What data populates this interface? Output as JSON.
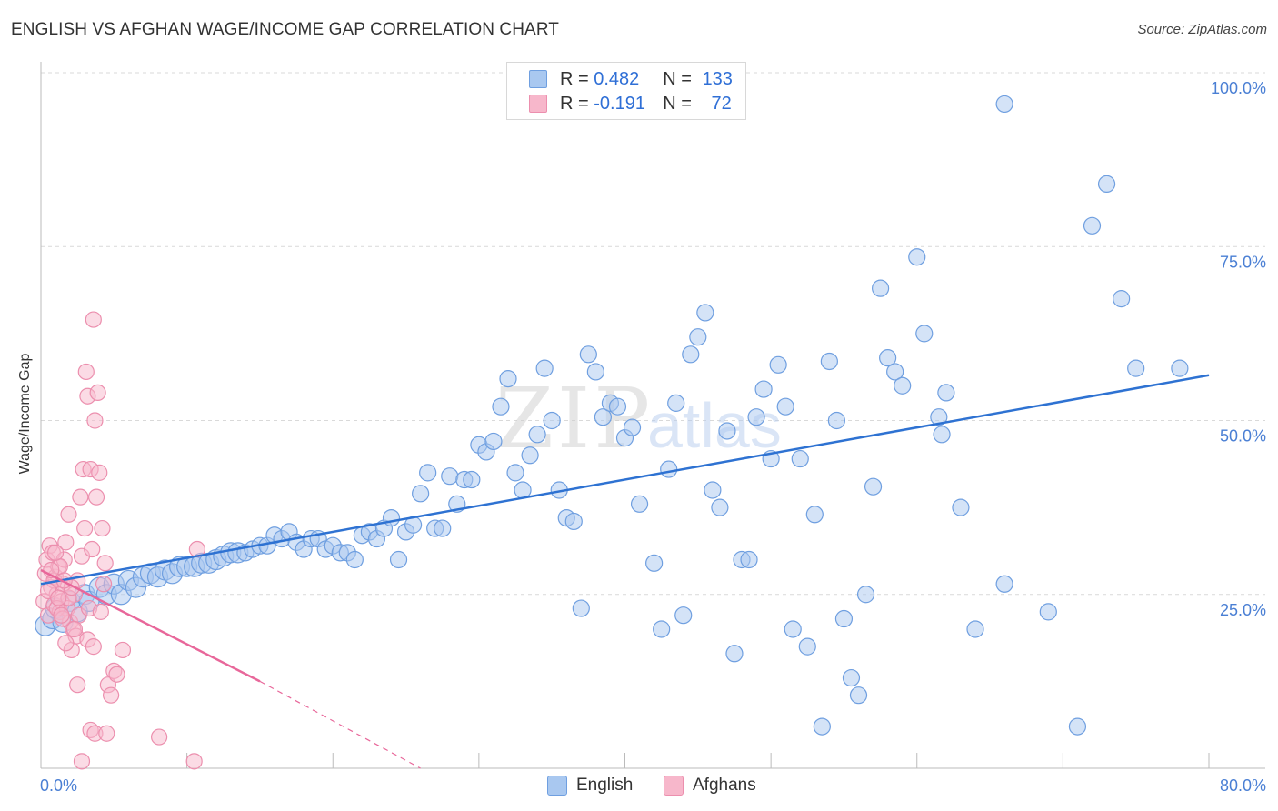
{
  "header": {
    "title": "ENGLISH VS AFGHAN WAGE/INCOME GAP CORRELATION CHART",
    "source": "Source: ZipAtlas.com"
  },
  "legend": {
    "english": {
      "r_label": "R = ",
      "r_value": "0.482",
      "n_label": "N = ",
      "n_value": "133"
    },
    "afghans": {
      "r_label": "R = ",
      "r_value": "-0.191",
      "n_label": "N = ",
      "n_value": "72"
    }
  },
  "colors": {
    "english_fill": "#a9c8f0",
    "english_stroke": "#6f9fe0",
    "english_line": "#2e72d2",
    "afghans_fill": "#f7b7cb",
    "afghans_stroke": "#ec8fae",
    "afghans_line": "#e8679a",
    "tick_text": "#4a7fd4",
    "grid": "#d9d9d9"
  },
  "watermark": {
    "zip": "ZIP",
    "atlas": "atlas"
  },
  "chart_data": {
    "type": "scatter",
    "title": "ENGLISH VS AFGHAN WAGE/INCOME GAP CORRELATION CHART",
    "xlabel": "",
    "ylabel": "Wage/Income Gap",
    "xlim": [
      0,
      80
    ],
    "ylim": [
      0,
      100
    ],
    "x_tick_labels": [
      "0.0%",
      "80.0%"
    ],
    "y_tick_labels": [
      "25.0%",
      "50.0%",
      "75.0%",
      "100.0%"
    ],
    "y_ticks": [
      25,
      50,
      75,
      100
    ],
    "grid": true,
    "legend_position": "top-center",
    "series": [
      {
        "name": "English",
        "R": 0.482,
        "N": 133,
        "trend": {
          "x0": 0,
          "y0": 26.5,
          "x1": 80,
          "y1": 56.5
        },
        "points": [
          [
            0.3,
            20.5
          ],
          [
            0.8,
            21.5
          ],
          [
            1.0,
            23
          ],
          [
            1.5,
            21
          ],
          [
            2.0,
            24
          ],
          [
            2.5,
            22.5
          ],
          [
            3.0,
            25
          ],
          [
            3.3,
            24
          ],
          [
            4.0,
            26
          ],
          [
            4.5,
            25
          ],
          [
            5.0,
            26.5
          ],
          [
            5.5,
            25
          ],
          [
            6.0,
            27
          ],
          [
            6.5,
            26
          ],
          [
            7.0,
            27.5
          ],
          [
            7.5,
            28
          ],
          [
            8.0,
            27.5
          ],
          [
            8.5,
            28.5
          ],
          [
            9.0,
            28
          ],
          [
            9.5,
            29
          ],
          [
            10,
            29
          ],
          [
            10.5,
            29
          ],
          [
            11,
            29.5
          ],
          [
            11.5,
            29.5
          ],
          [
            12,
            30
          ],
          [
            12.5,
            30.5
          ],
          [
            13,
            31
          ],
          [
            13.5,
            31
          ],
          [
            14,
            31
          ],
          [
            14.5,
            31.5
          ],
          [
            15,
            32
          ],
          [
            15.5,
            32
          ],
          [
            16,
            33.5
          ],
          [
            16.5,
            33
          ],
          [
            17,
            34
          ],
          [
            17.5,
            32.5
          ],
          [
            18,
            31.5
          ],
          [
            18.5,
            33
          ],
          [
            19,
            33
          ],
          [
            19.5,
            31.5
          ],
          [
            20,
            32
          ],
          [
            20.5,
            31
          ],
          [
            21,
            31
          ],
          [
            21.5,
            30
          ],
          [
            22,
            33.5
          ],
          [
            22.5,
            34
          ],
          [
            23,
            33
          ],
          [
            23.5,
            34.5
          ],
          [
            24,
            36
          ],
          [
            24.5,
            30
          ],
          [
            25,
            34
          ],
          [
            25.5,
            35
          ],
          [
            26,
            39.5
          ],
          [
            26.5,
            42.5
          ],
          [
            27,
            34.5
          ],
          [
            27.5,
            34.5
          ],
          [
            28,
            42
          ],
          [
            28.5,
            38
          ],
          [
            29,
            41.5
          ],
          [
            29.5,
            41.5
          ],
          [
            30,
            46.5
          ],
          [
            30.5,
            45.5
          ],
          [
            31,
            47
          ],
          [
            31.5,
            52
          ],
          [
            32,
            56
          ],
          [
            32.5,
            42.5
          ],
          [
            33,
            40
          ],
          [
            33.5,
            45
          ],
          [
            34,
            48
          ],
          [
            34.5,
            57.5
          ],
          [
            35,
            50
          ],
          [
            35.5,
            40
          ],
          [
            36,
            36
          ],
          [
            36.5,
            35.5
          ],
          [
            37,
            23
          ],
          [
            37.5,
            59.5
          ],
          [
            38,
            57
          ],
          [
            38.5,
            50.5
          ],
          [
            39,
            52.5
          ],
          [
            39.5,
            52
          ],
          [
            40,
            47.5
          ],
          [
            40.5,
            49
          ],
          [
            41,
            38
          ],
          [
            42,
            29.5
          ],
          [
            42.5,
            20
          ],
          [
            43,
            43
          ],
          [
            43.5,
            52.5
          ],
          [
            44,
            22
          ],
          [
            44.5,
            59.5
          ],
          [
            45,
            62
          ],
          [
            45.5,
            65.5
          ],
          [
            46,
            40
          ],
          [
            46.5,
            37.5
          ],
          [
            47,
            48.5
          ],
          [
            47.5,
            16.5
          ],
          [
            48,
            30
          ],
          [
            48.5,
            30
          ],
          [
            49,
            50.5
          ],
          [
            49.5,
            54.5
          ],
          [
            50,
            44.5
          ],
          [
            50.5,
            58
          ],
          [
            51,
            52
          ],
          [
            51.5,
            20
          ],
          [
            52,
            44.5
          ],
          [
            52.5,
            17.5
          ],
          [
            53,
            36.5
          ],
          [
            53.5,
            6
          ],
          [
            54,
            58.5
          ],
          [
            54.5,
            50
          ],
          [
            55,
            21.5
          ],
          [
            55.5,
            13
          ],
          [
            56,
            10.5
          ],
          [
            56.5,
            25
          ],
          [
            57,
            40.5
          ],
          [
            57.5,
            69
          ],
          [
            58,
            59
          ],
          [
            58.5,
            57
          ],
          [
            59,
            55
          ],
          [
            60,
            73.5
          ],
          [
            60.5,
            62.5
          ],
          [
            61.5,
            50.5
          ],
          [
            61.7,
            48
          ],
          [
            62,
            54
          ],
          [
            63,
            37.5
          ],
          [
            64,
            20
          ],
          [
            66,
            26.5
          ],
          [
            69,
            22.5
          ],
          [
            71,
            6
          ],
          [
            72,
            78
          ],
          [
            73,
            84
          ],
          [
            74,
            67.5
          ],
          [
            75,
            57.5
          ],
          [
            66,
            95.5
          ],
          [
            78,
            57.5
          ]
        ]
      },
      {
        "name": "Afghans",
        "R": -0.191,
        "N": 72,
        "trend": {
          "x0": 0,
          "y0": 28.5,
          "x1": 15,
          "y1": 12.5,
          "dashed_to_x": 26,
          "dashed_to_y": 0
        },
        "points": [
          [
            0.2,
            24
          ],
          [
            0.3,
            28
          ],
          [
            0.4,
            30
          ],
          [
            0.5,
            22
          ],
          [
            0.6,
            32
          ],
          [
            0.7,
            26
          ],
          [
            0.8,
            31
          ],
          [
            0.9,
            23.5
          ],
          [
            1.0,
            27.5
          ],
          [
            1.1,
            25
          ],
          [
            1.2,
            29
          ],
          [
            1.3,
            22.5
          ],
          [
            1.4,
            24
          ],
          [
            1.5,
            26.5
          ],
          [
            1.6,
            30
          ],
          [
            1.7,
            32.5
          ],
          [
            1.8,
            23
          ],
          [
            1.9,
            36.5
          ],
          [
            2.0,
            21
          ],
          [
            2.1,
            17
          ],
          [
            2.2,
            20
          ],
          [
            2.3,
            25
          ],
          [
            2.4,
            19
          ],
          [
            2.5,
            27
          ],
          [
            2.6,
            22
          ],
          [
            2.7,
            39
          ],
          [
            2.8,
            30.5
          ],
          [
            2.9,
            43
          ],
          [
            3.0,
            34.5
          ],
          [
            3.1,
            57
          ],
          [
            3.2,
            53.5
          ],
          [
            3.3,
            23
          ],
          [
            3.4,
            43
          ],
          [
            3.5,
            31.5
          ],
          [
            3.6,
            64.5
          ],
          [
            3.7,
            50
          ],
          [
            3.8,
            39
          ],
          [
            3.9,
            54
          ],
          [
            4.0,
            42.5
          ],
          [
            4.1,
            22.5
          ],
          [
            4.2,
            34.5
          ],
          [
            4.3,
            26.5
          ],
          [
            4.4,
            29.5
          ],
          [
            4.6,
            12
          ],
          [
            4.8,
            10.5
          ],
          [
            5.0,
            14
          ],
          [
            5.2,
            13.5
          ],
          [
            3.2,
            18.5
          ],
          [
            3.6,
            17.5
          ],
          [
            2.5,
            12
          ],
          [
            3.4,
            5.5
          ],
          [
            3.7,
            5
          ],
          [
            4.5,
            5
          ],
          [
            2.8,
            1
          ],
          [
            10.5,
            1
          ],
          [
            8.1,
            4.5
          ],
          [
            5.6,
            17
          ],
          [
            10.7,
            31.5
          ],
          [
            0.9,
            27
          ],
          [
            1.1,
            23
          ],
          [
            1.3,
            29
          ],
          [
            1.5,
            21.5
          ],
          [
            1.7,
            18
          ],
          [
            1.9,
            24.5
          ],
          [
            2.1,
            26
          ],
          [
            2.3,
            20
          ],
          [
            0.5,
            25.5
          ],
          [
            0.7,
            28.5
          ],
          [
            1.0,
            31
          ],
          [
            1.2,
            24.5
          ],
          [
            1.4,
            22
          ],
          [
            1.6,
            27
          ]
        ]
      }
    ]
  }
}
